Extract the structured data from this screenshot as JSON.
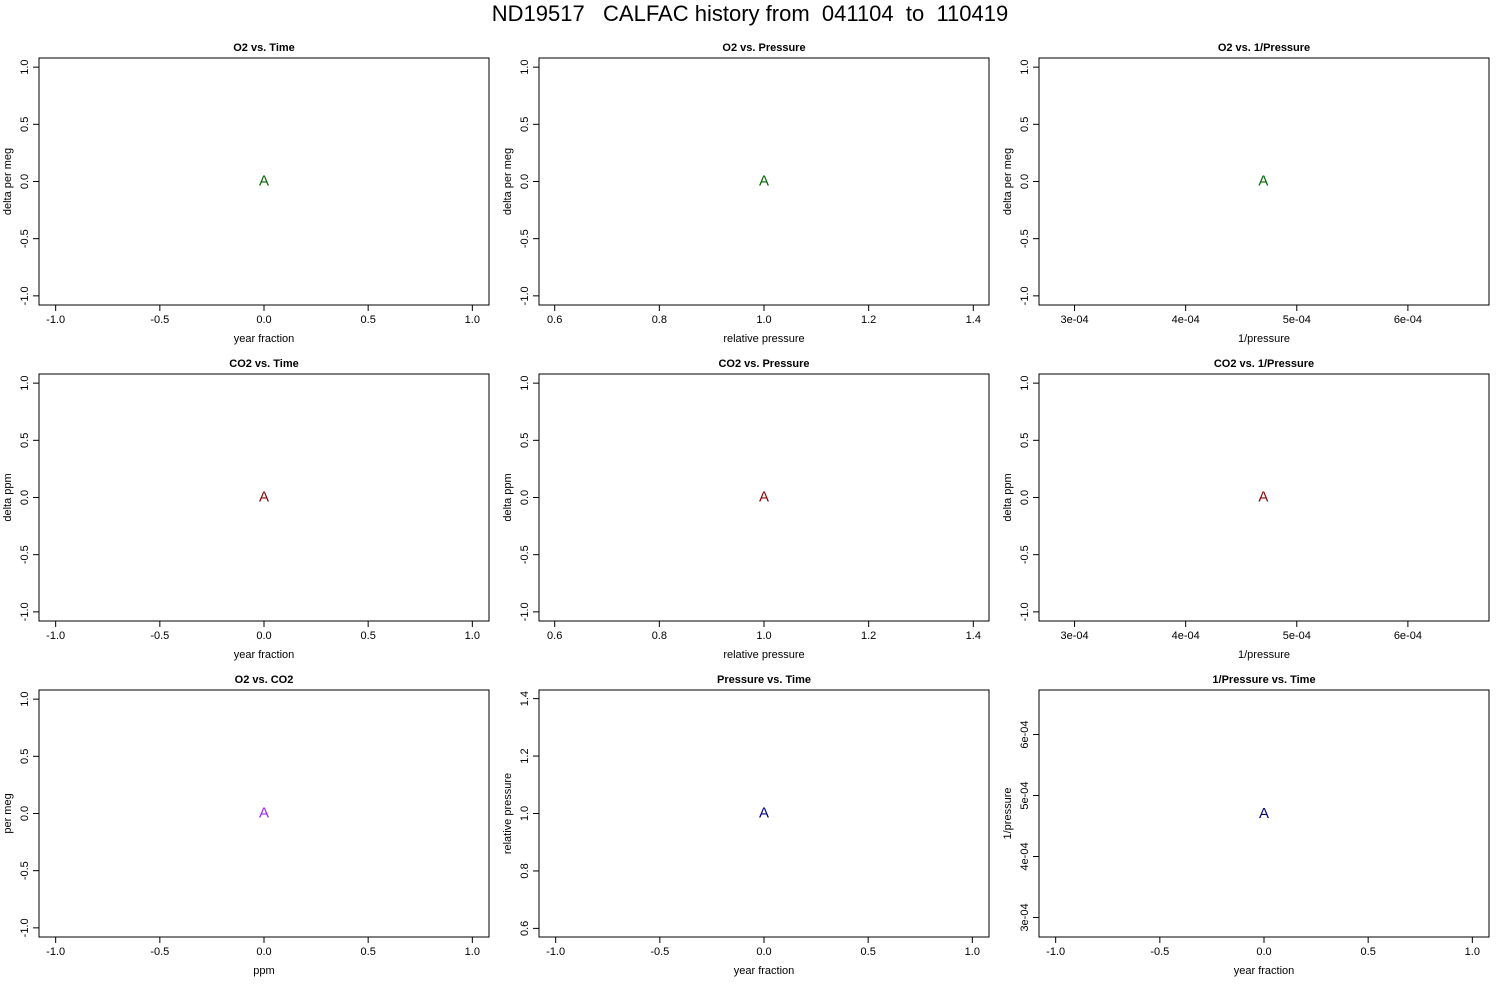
{
  "title": "ND19517   CALFAC history from  041104  to  110419",
  "chart_data": [
    {
      "type": "scatter",
      "title": "O2 vs. Time",
      "xlabel": "year fraction",
      "ylabel": "delta per meg",
      "x": [
        0
      ],
      "values": [
        0
      ],
      "marker": "A",
      "color": "#006400",
      "xlim": [
        -1.08,
        1.08
      ],
      "xticks": [
        {
          "value": -1,
          "label": "-1.0"
        },
        -0.5,
        {
          "value": 0,
          "label": "0.0"
        },
        0.5,
        {
          "value": 1,
          "label": "1.0"
        }
      ],
      "ylim": [
        -1.08,
        1.08
      ],
      "yticks": [
        {
          "value": -1,
          "label": "-1.0"
        },
        -0.5,
        {
          "value": 0,
          "label": "0.0"
        },
        0.5,
        {
          "value": 1,
          "label": "1.0"
        }
      ]
    },
    {
      "type": "scatter",
      "title": "O2 vs. Pressure",
      "xlabel": "relative pressure",
      "ylabel": "delta per meg",
      "x": [
        1
      ],
      "values": [
        0
      ],
      "marker": "A",
      "color": "#006400",
      "xlim": [
        0.57,
        1.43
      ],
      "xticks": [
        0.6,
        0.8,
        {
          "value": 1,
          "label": "1.0"
        },
        1.2,
        1.4
      ],
      "ylim": [
        -1.08,
        1.08
      ],
      "yticks": [
        {
          "value": -1,
          "label": "-1.0"
        },
        -0.5,
        {
          "value": 0,
          "label": "0.0"
        },
        0.5,
        {
          "value": 1,
          "label": "1.0"
        }
      ]
    },
    {
      "type": "scatter",
      "title": "O2 vs. 1/Pressure",
      "xlabel": "1/pressure",
      "ylabel": "delta per meg",
      "x": [
        0.00047
      ],
      "values": [
        0
      ],
      "marker": "A",
      "color": "#006400",
      "xlim": [
        0.000268,
        0.000673
      ],
      "xticks": [
        {
          "value": 0.0003,
          "label": "3e-04"
        },
        {
          "value": 0.0004,
          "label": "4e-04"
        },
        {
          "value": 0.0005,
          "label": "5e-04"
        },
        {
          "value": 0.0006,
          "label": "6e-04"
        }
      ],
      "ylim": [
        -1.08,
        1.08
      ],
      "yticks": [
        {
          "value": -1,
          "label": "-1.0"
        },
        -0.5,
        {
          "value": 0,
          "label": "0.0"
        },
        0.5,
        {
          "value": 1,
          "label": "1.0"
        }
      ]
    },
    {
      "type": "scatter",
      "title": "CO2 vs. Time",
      "xlabel": "year fraction",
      "ylabel": "delta ppm",
      "x": [
        0
      ],
      "values": [
        0
      ],
      "marker": "A",
      "color": "#8b0000",
      "xlim": [
        -1.08,
        1.08
      ],
      "xticks": [
        {
          "value": -1,
          "label": "-1.0"
        },
        -0.5,
        {
          "value": 0,
          "label": "0.0"
        },
        0.5,
        {
          "value": 1,
          "label": "1.0"
        }
      ],
      "ylim": [
        -1.08,
        1.08
      ],
      "yticks": [
        {
          "value": -1,
          "label": "-1.0"
        },
        -0.5,
        {
          "value": 0,
          "label": "0.0"
        },
        0.5,
        {
          "value": 1,
          "label": "1.0"
        }
      ]
    },
    {
      "type": "scatter",
      "title": "CO2 vs. Pressure",
      "xlabel": "relative pressure",
      "ylabel": "delta ppm",
      "x": [
        1
      ],
      "values": [
        0
      ],
      "marker": "A",
      "color": "#8b0000",
      "xlim": [
        0.57,
        1.43
      ],
      "xticks": [
        0.6,
        0.8,
        {
          "value": 1,
          "label": "1.0"
        },
        1.2,
        1.4
      ],
      "ylim": [
        -1.08,
        1.08
      ],
      "yticks": [
        {
          "value": -1,
          "label": "-1.0"
        },
        -0.5,
        {
          "value": 0,
          "label": "0.0"
        },
        0.5,
        {
          "value": 1,
          "label": "1.0"
        }
      ]
    },
    {
      "type": "scatter",
      "title": "CO2 vs. 1/Pressure",
      "xlabel": "1/pressure",
      "ylabel": "delta ppm",
      "x": [
        0.00047
      ],
      "values": [
        0
      ],
      "marker": "A",
      "color": "#8b0000",
      "xlim": [
        0.000268,
        0.000673
      ],
      "xticks": [
        {
          "value": 0.0003,
          "label": "3e-04"
        },
        {
          "value": 0.0004,
          "label": "4e-04"
        },
        {
          "value": 0.0005,
          "label": "5e-04"
        },
        {
          "value": 0.0006,
          "label": "6e-04"
        }
      ],
      "ylim": [
        -1.08,
        1.08
      ],
      "yticks": [
        {
          "value": -1,
          "label": "-1.0"
        },
        -0.5,
        {
          "value": 0,
          "label": "0.0"
        },
        0.5,
        {
          "value": 1,
          "label": "1.0"
        }
      ]
    },
    {
      "type": "scatter",
      "title": "O2 vs. CO2",
      "xlabel": "ppm",
      "ylabel": "per meg",
      "x": [
        0
      ],
      "values": [
        0
      ],
      "marker": "A",
      "color": "#a020f0",
      "xlim": [
        -1.08,
        1.08
      ],
      "xticks": [
        {
          "value": -1,
          "label": "-1.0"
        },
        -0.5,
        {
          "value": 0,
          "label": "0.0"
        },
        0.5,
        {
          "value": 1,
          "label": "1.0"
        }
      ],
      "ylim": [
        -1.08,
        1.08
      ],
      "yticks": [
        {
          "value": -1,
          "label": "-1.0"
        },
        -0.5,
        {
          "value": 0,
          "label": "0.0"
        },
        0.5,
        {
          "value": 1,
          "label": "1.0"
        }
      ]
    },
    {
      "type": "scatter",
      "title": "Pressure vs. Time",
      "xlabel": "year fraction",
      "ylabel": "relative pressure",
      "x": [
        0
      ],
      "values": [
        1
      ],
      "marker": "A",
      "color": "#000080",
      "xlim": [
        -1.08,
        1.08
      ],
      "xticks": [
        {
          "value": -1,
          "label": "-1.0"
        },
        -0.5,
        {
          "value": 0,
          "label": "0.0"
        },
        0.5,
        {
          "value": 1,
          "label": "1.0"
        }
      ],
      "ylim": [
        0.57,
        1.43
      ],
      "yticks": [
        0.6,
        0.8,
        {
          "value": 1,
          "label": "1.0"
        },
        1.2,
        1.4
      ]
    },
    {
      "type": "scatter",
      "title": "1/Pressure vs. Time",
      "xlabel": "year fraction",
      "ylabel": "1/pressure",
      "x": [
        0
      ],
      "values": [
        0.00047
      ],
      "marker": "A",
      "color": "#000080",
      "xlim": [
        -1.08,
        1.08
      ],
      "xticks": [
        {
          "value": -1,
          "label": "-1.0"
        },
        -0.5,
        {
          "value": 0,
          "label": "0.0"
        },
        0.5,
        {
          "value": 1,
          "label": "1.0"
        }
      ],
      "ylim": [
        0.000268,
        0.000673
      ],
      "yticks": [
        {
          "value": 0.0003,
          "label": "3e-04"
        },
        {
          "value": 0.0004,
          "label": "4e-04"
        },
        {
          "value": 0.0005,
          "label": "5e-04"
        },
        {
          "value": 0.0006,
          "label": "6e-04"
        }
      ]
    }
  ]
}
